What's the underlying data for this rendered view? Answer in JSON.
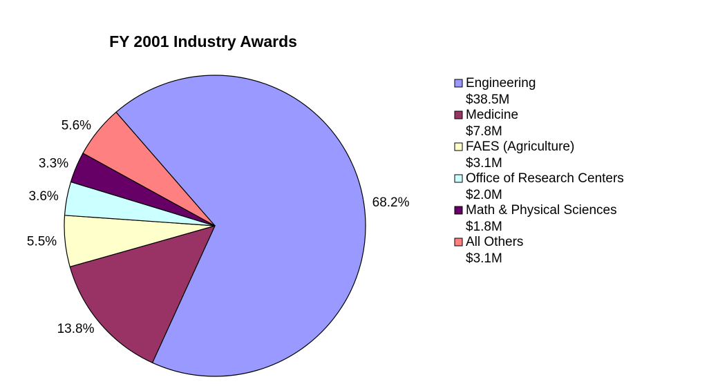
{
  "chart_data": {
    "type": "pie",
    "title": "FY 2001 Industry Awards",
    "categories": [
      "Engineering",
      "Medicine",
      "FAES (Agriculture)",
      "Office of Research Centers",
      "Math & Physical Sciences",
      "All Others"
    ],
    "values": [
      68.2,
      13.8,
      5.5,
      3.6,
      3.3,
      5.6
    ],
    "value_labels": [
      "68.2%",
      "13.8%",
      "5.5%",
      "3.6%",
      "3.3%",
      "5.6%"
    ],
    "amount_labels": [
      "$38.5M",
      "$7.8M",
      "$3.1M",
      "$2.0M",
      "$1.8M",
      "$3.1M"
    ],
    "colors": [
      "#9999ff",
      "#993366",
      "#ffffcc",
      "#ccffff",
      "#660066",
      "#ff8080"
    ],
    "legend": "right"
  }
}
